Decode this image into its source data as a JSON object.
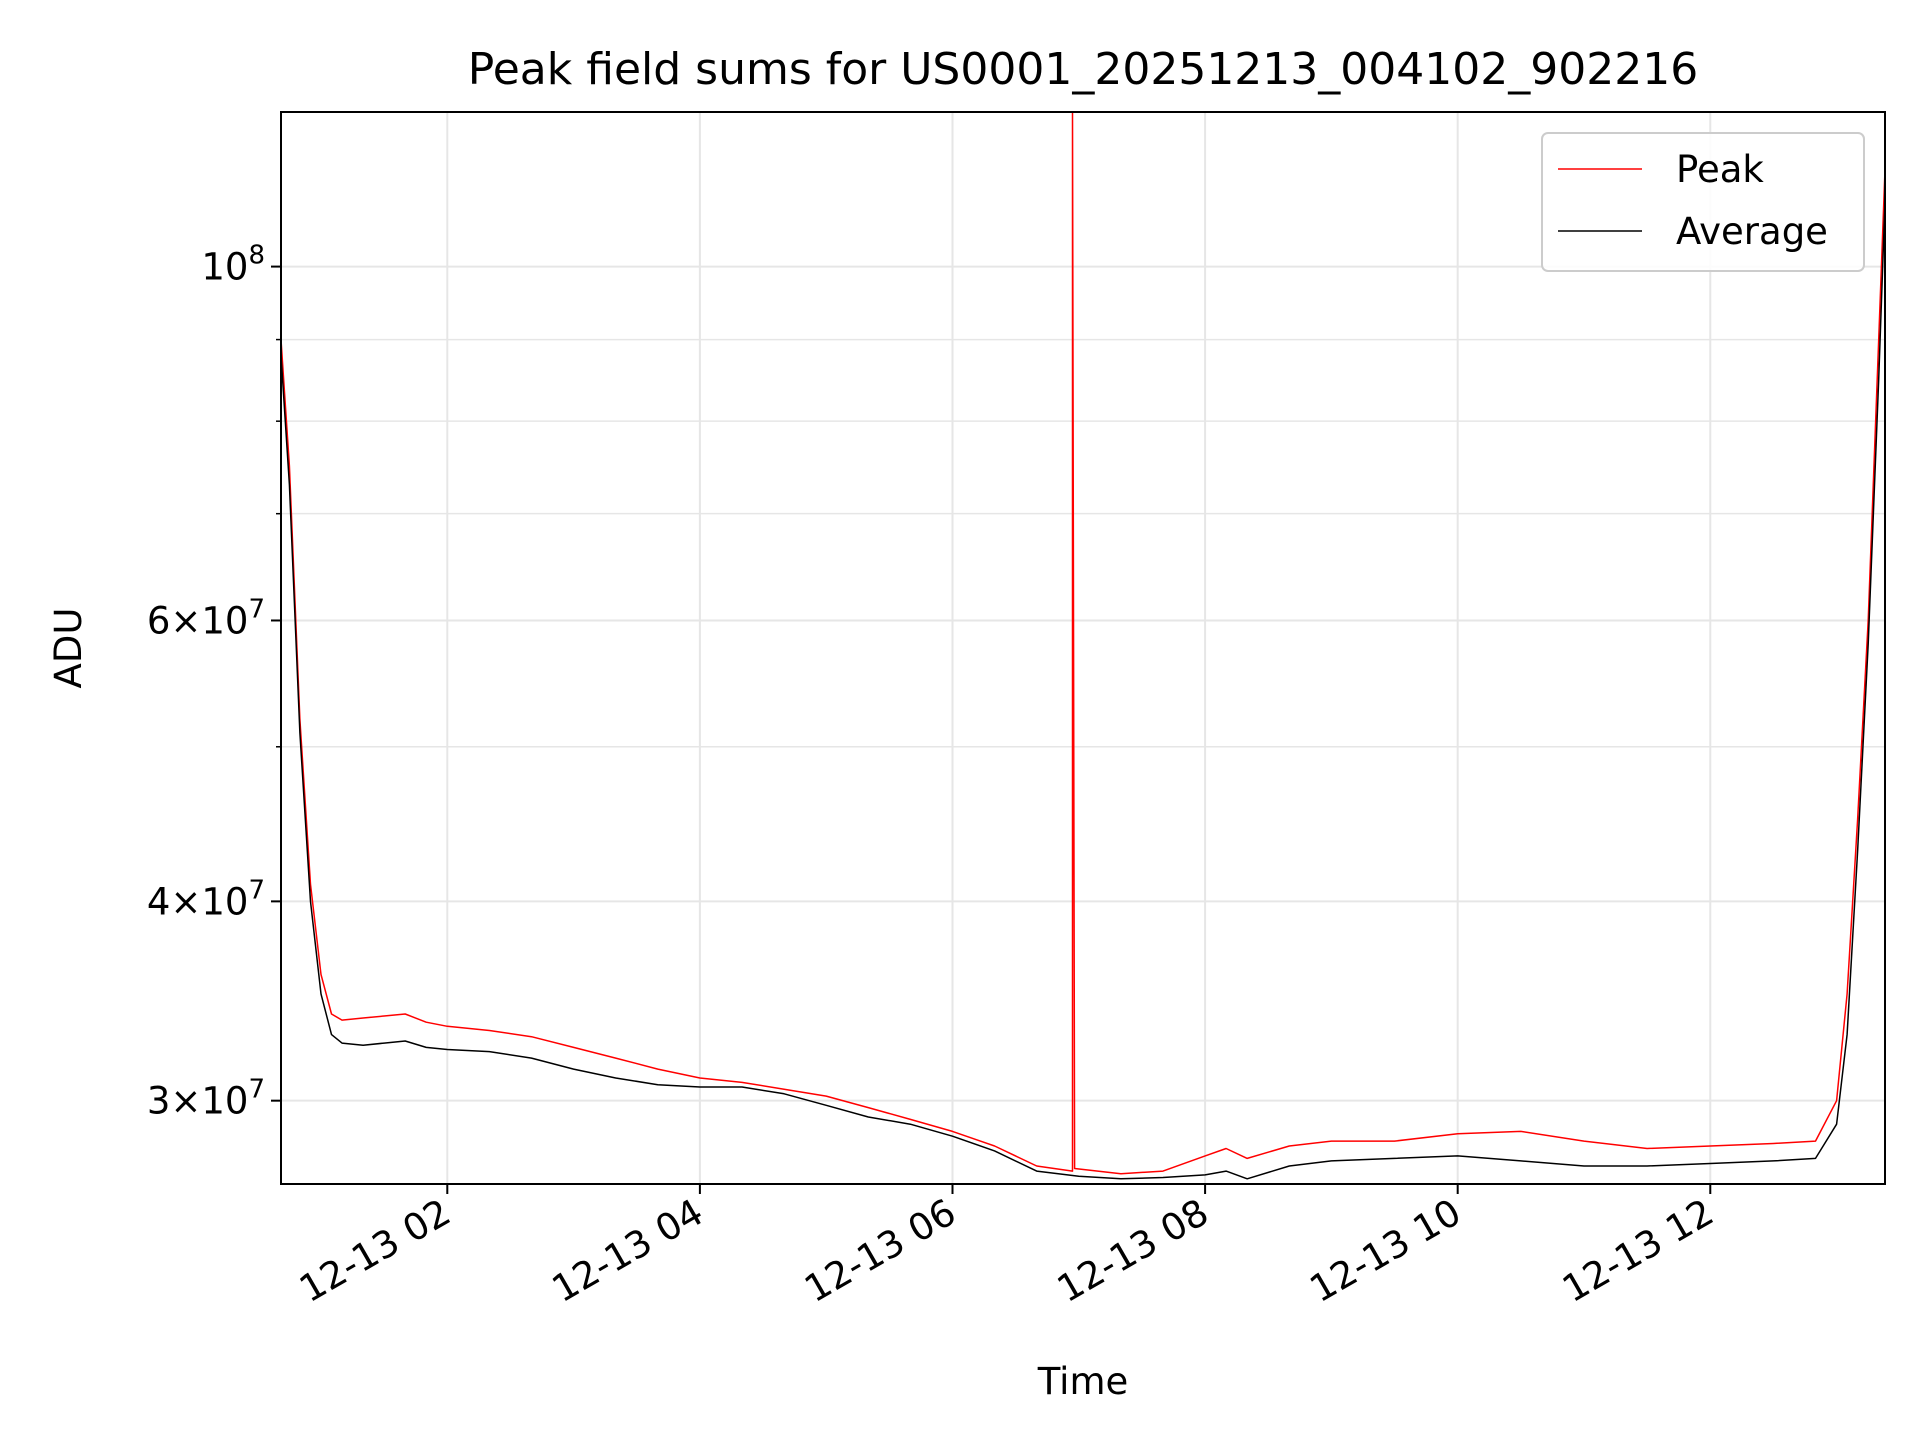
{
  "chart_data": {
    "type": "line",
    "title": "Peak field sums for US0001_20251213_004102_902216",
    "xlabel": "Time",
    "ylabel": "ADU",
    "yscale": "log",
    "xlim": [
      "2025-12-13 00:41",
      "2025-12-13 13:23"
    ],
    "ylim": [
      26600000,
      125000000
    ],
    "grid": true,
    "legend_position": "top-right",
    "x_ticks": [
      "12-13 02",
      "12-13 04",
      "12-13 06",
      "12-13 08",
      "12-13 10",
      "12-13 12"
    ],
    "y_ticks": [
      {
        "value": 100000000,
        "mantissa": "",
        "exponent": "8"
      },
      {
        "value": 60000000,
        "mantissa": "6",
        "exponent": "7"
      },
      {
        "value": 40000000,
        "mantissa": "4",
        "exponent": "7"
      },
      {
        "value": 30000000,
        "mantissa": "3",
        "exponent": "7"
      }
    ],
    "series": [
      {
        "name": "Peak",
        "color": "#ff0000",
        "x": [
          "2025-12-13 00:41",
          "2025-12-13 00:45",
          "2025-12-13 00:50",
          "2025-12-13 00:55",
          "2025-12-13 01:00",
          "2025-12-13 01:05",
          "2025-12-13 01:10",
          "2025-12-13 01:20",
          "2025-12-13 01:30",
          "2025-12-13 01:40",
          "2025-12-13 01:50",
          "2025-12-13 02:00",
          "2025-12-13 02:20",
          "2025-12-13 02:40",
          "2025-12-13 03:00",
          "2025-12-13 03:20",
          "2025-12-13 03:40",
          "2025-12-13 04:00",
          "2025-12-13 04:20",
          "2025-12-13 04:40",
          "2025-12-13 05:00",
          "2025-12-13 05:20",
          "2025-12-13 05:40",
          "2025-12-13 06:00",
          "2025-12-13 06:20",
          "2025-12-13 06:40",
          "2025-12-13 06:57",
          "2025-12-13 06:57",
          "2025-12-13 06:58",
          "2025-12-13 07:20",
          "2025-12-13 07:40",
          "2025-12-13 08:00",
          "2025-12-13 08:10",
          "2025-12-13 08:20",
          "2025-12-13 08:40",
          "2025-12-13 09:00",
          "2025-12-13 09:30",
          "2025-12-13 10:00",
          "2025-12-13 10:30",
          "2025-12-13 11:00",
          "2025-12-13 11:30",
          "2025-12-13 12:00",
          "2025-12-13 12:30",
          "2025-12-13 12:50",
          "2025-12-13 13:00",
          "2025-12-13 13:05",
          "2025-12-13 13:10",
          "2025-12-13 13:15",
          "2025-12-13 13:20",
          "2025-12-13 13:23"
        ],
        "y": [
          90000000,
          75000000,
          52000000,
          41000000,
          36000000,
          34000000,
          33700000,
          33800000,
          33900000,
          34000000,
          33600000,
          33400000,
          33200000,
          32900000,
          32400000,
          31900000,
          31400000,
          31000000,
          30800000,
          30500000,
          30200000,
          29700000,
          29200000,
          28700000,
          28100000,
          27300000,
          27100000,
          125000000,
          27200000,
          27000000,
          27100000,
          27700000,
          28000000,
          27600000,
          28100000,
          28300000,
          28300000,
          28600000,
          28700000,
          28300000,
          28000000,
          28100000,
          28200000,
          28300000,
          30000000,
          35000000,
          45000000,
          60000000,
          90000000,
          115000000
        ]
      },
      {
        "name": "Average",
        "color": "#000000",
        "x": [
          "2025-12-13 00:41",
          "2025-12-13 00:45",
          "2025-12-13 00:50",
          "2025-12-13 00:55",
          "2025-12-13 01:00",
          "2025-12-13 01:05",
          "2025-12-13 01:10",
          "2025-12-13 01:20",
          "2025-12-13 01:30",
          "2025-12-13 01:40",
          "2025-12-13 01:50",
          "2025-12-13 02:00",
          "2025-12-13 02:20",
          "2025-12-13 02:40",
          "2025-12-13 03:00",
          "2025-12-13 03:20",
          "2025-12-13 03:40",
          "2025-12-13 04:00",
          "2025-12-13 04:20",
          "2025-12-13 04:40",
          "2025-12-13 05:00",
          "2025-12-13 05:20",
          "2025-12-13 05:40",
          "2025-12-13 06:00",
          "2025-12-13 06:20",
          "2025-12-13 06:40",
          "2025-12-13 07:00",
          "2025-12-13 07:20",
          "2025-12-13 07:40",
          "2025-12-13 08:00",
          "2025-12-13 08:10",
          "2025-12-13 08:20",
          "2025-12-13 08:40",
          "2025-12-13 09:00",
          "2025-12-13 09:30",
          "2025-12-13 10:00",
          "2025-12-13 10:30",
          "2025-12-13 11:00",
          "2025-12-13 11:30",
          "2025-12-13 12:00",
          "2025-12-13 12:30",
          "2025-12-13 12:50",
          "2025-12-13 13:00",
          "2025-12-13 13:05",
          "2025-12-13 13:10",
          "2025-12-13 13:15",
          "2025-12-13 13:20",
          "2025-12-13 13:23"
        ],
        "y": [
          88000000,
          73000000,
          51000000,
          40000000,
          35000000,
          33000000,
          32600000,
          32500000,
          32600000,
          32700000,
          32400000,
          32300000,
          32200000,
          31900000,
          31400000,
          31000000,
          30700000,
          30600000,
          30600000,
          30300000,
          29800000,
          29300000,
          29000000,
          28500000,
          27900000,
          27100000,
          26900000,
          26800000,
          26850000,
          26950000,
          27100000,
          26800000,
          27300000,
          27500000,
          27600000,
          27700000,
          27500000,
          27300000,
          27300000,
          27400000,
          27500000,
          27600000,
          29000000,
          33000000,
          43000000,
          58000000,
          85000000,
          110000000
        ]
      }
    ]
  }
}
